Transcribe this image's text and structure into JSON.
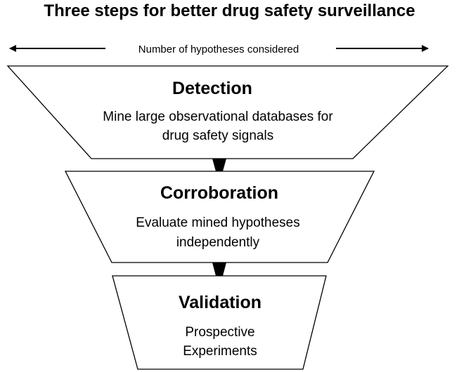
{
  "title": "Three steps for better drug safety surveillance",
  "axis_label": "Number of hypotheses considered",
  "colors": {
    "stroke": "#000000",
    "fill": "#ffffff",
    "connector": "#000000"
  },
  "stages": [
    {
      "title": "Detection",
      "description": [
        "Mine large observational databases for",
        "drug safety signals"
      ]
    },
    {
      "title": "Corroboration",
      "description": [
        "Evaluate mined hypotheses",
        "independently"
      ]
    },
    {
      "title": "Validation",
      "description": [
        "Prospective",
        "Experiments"
      ]
    }
  ]
}
